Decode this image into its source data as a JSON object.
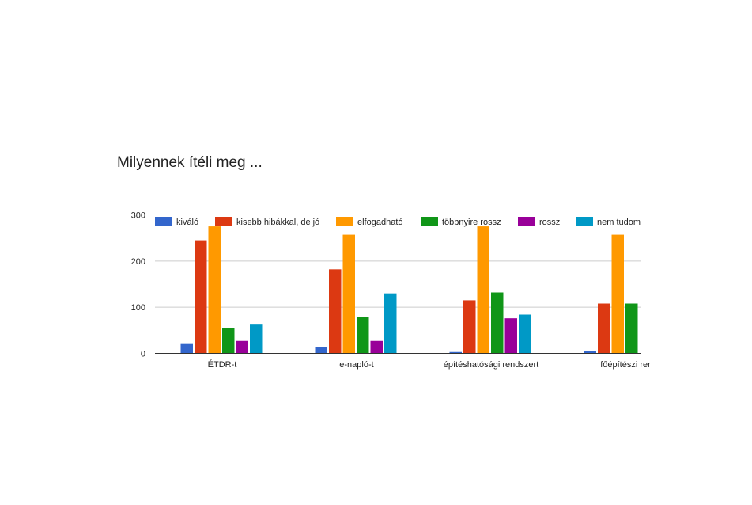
{
  "chart_data": {
    "type": "bar",
    "title": "Milyennek ítéli meg ...",
    "categories": [
      "ÉTDR-t",
      "e-napló-t",
      "építéshatósági rendszert",
      "főépítészi rer"
    ],
    "series": [
      {
        "name": "kiváló",
        "color": "#3366cc",
        "values": [
          22,
          14,
          3,
          5
        ]
      },
      {
        "name": "kisebb hibákkal, de jó",
        "color": "#dc3912",
        "values": [
          245,
          182,
          115,
          108
        ]
      },
      {
        "name": "elfogadható",
        "color": "#ff9900",
        "values": [
          275,
          257,
          275,
          257
        ]
      },
      {
        "name": "többnyire rossz",
        "color": "#109618",
        "values": [
          54,
          79,
          132,
          108
        ]
      },
      {
        "name": "rossz",
        "color": "#990099",
        "values": [
          27,
          27,
          76,
          null
        ]
      },
      {
        "name": "nem tudom",
        "color": "#0099c6",
        "values": [
          64,
          130,
          84,
          null
        ]
      }
    ],
    "legend_labels": [
      "kiváló",
      "kisebb hibákkal, de jó",
      "elfogadható",
      "többnyire rossz",
      "rossz",
      "nem tudom"
    ],
    "y_ticks": [
      "0",
      "100",
      "200",
      "300"
    ],
    "ylim": [
      0,
      300
    ],
    "grid": true,
    "legend_position": "top"
  }
}
